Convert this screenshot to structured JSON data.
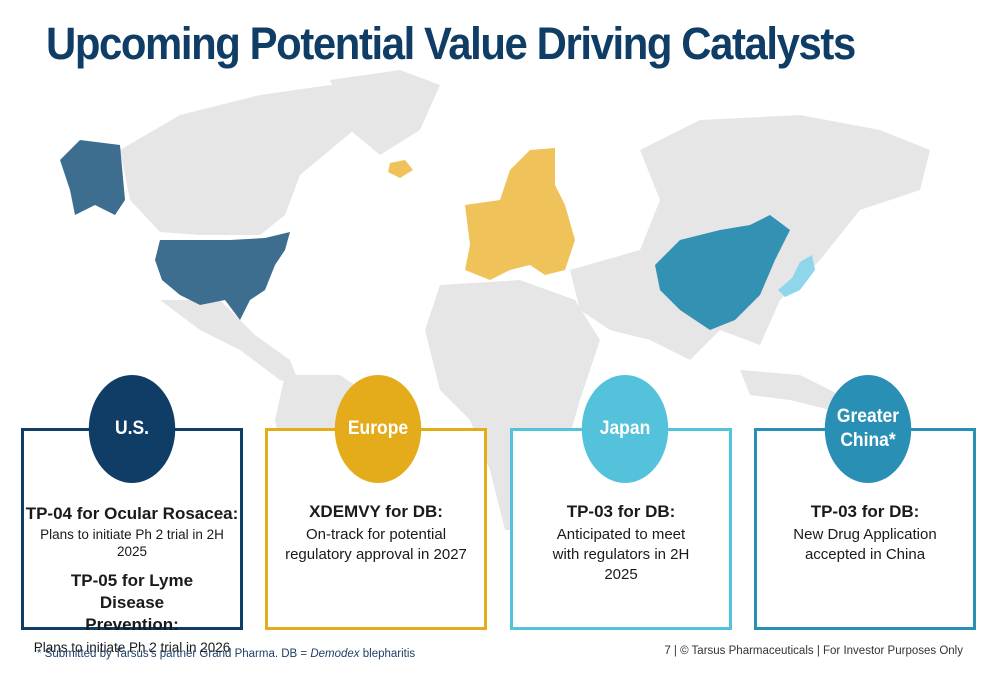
{
  "title": "Upcoming Potential Value Driving Catalysts",
  "regions": [
    {
      "name": "U.S.",
      "color": "#0f3d66",
      "items": [
        {
          "heading": "TP-04 for Ocular Rosacea:",
          "text": "Plans to initiate Ph 2 trial in 2H 2025"
        },
        {
          "heading": "TP-05 for Lyme Disease Prevention:",
          "text": "Plans to initiate Ph 2 trial in 2026"
        }
      ]
    },
    {
      "name": "Europe",
      "color": "#e4ac1a",
      "items": [
        {
          "heading": "XDEMVY for DB:",
          "text": "On-track for potential regulatory approval in 2027"
        }
      ]
    },
    {
      "name": "Japan",
      "color": "#55c2dc",
      "items": [
        {
          "heading": "TP-03 for DB:",
          "text": "Anticipated to meet with regulators in 2H 2025"
        }
      ]
    },
    {
      "name": "Greater China*",
      "color": "#2a8fb5",
      "items": [
        {
          "heading": "TP-03 for DB:",
          "text": "New Drug Application accepted in China"
        }
      ]
    }
  ],
  "footnote": {
    "prefix": "* Submitted by Tarsus's partner Grand Pharma. DB = ",
    "italic": "Demodex",
    "suffix": " blepharitis"
  },
  "footer": "7 | © Tarsus Pharmaceuticals | For Investor Purposes Only",
  "map_colors": {
    "land": "#e6e6e6",
    "us": "#3d6e8f",
    "europe": "#efc25a",
    "china": "#3391b3",
    "japan": "#8fd6ea"
  }
}
